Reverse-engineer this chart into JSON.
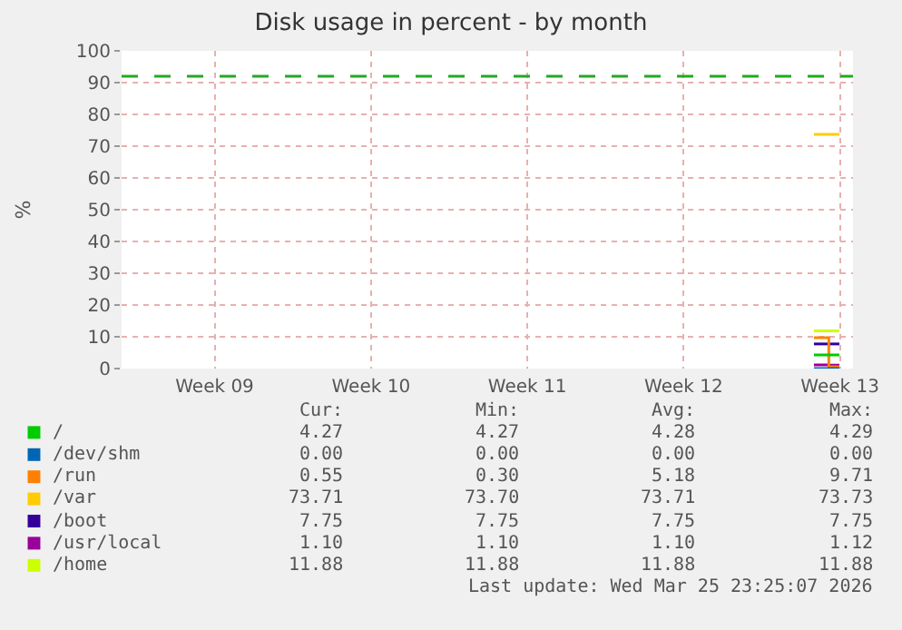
{
  "chart_data": {
    "type": "step",
    "title": "Disk usage in percent - by month",
    "ylabel": "%",
    "x": [
      "2026-03-24T20:00",
      "2026-03-25T12:00",
      "2026-03-25T23:25"
    ],
    "series": [
      {
        "name": "/",
        "color": "#00cc00",
        "values": [
          4.29,
          4.27,
          4.27
        ]
      },
      {
        "name": "/dev/shm",
        "color": "#0066b3",
        "values": [
          0.0,
          0.0,
          0.0
        ]
      },
      {
        "name": "/run",
        "color": "#ff8000",
        "values": [
          9.71,
          0.55,
          0.55
        ]
      },
      {
        "name": "/var",
        "color": "#ffcc00",
        "values": [
          73.73,
          73.71,
          73.71
        ]
      },
      {
        "name": "/boot",
        "color": "#330099",
        "values": [
          7.75,
          7.75,
          7.75
        ]
      },
      {
        "name": "/usr/local",
        "color": "#990099",
        "values": [
          1.12,
          1.1,
          1.1
        ]
      },
      {
        "name": "/home",
        "color": "#ccff00",
        "values": [
          11.88,
          11.88,
          11.88
        ]
      }
    ],
    "xlim": [
      "2026-02-21T20:00",
      "2026-03-26T14:00"
    ],
    "xticks": [
      {
        "value": "2026-02-26",
        "label": "Week 09"
      },
      {
        "value": "2026-03-05",
        "label": "Week 10"
      },
      {
        "value": "2026-03-12",
        "label": "Week 11"
      },
      {
        "value": "2026-03-19",
        "label": "Week 12"
      },
      {
        "value": "2026-03-26",
        "label": "Week 13"
      }
    ],
    "ylim": [
      0,
      100
    ],
    "yticks": [
      0,
      10,
      20,
      30,
      40,
      50,
      60,
      70,
      80,
      90,
      100
    ],
    "ref_lines": [
      {
        "axis": "y",
        "value": 92,
        "label": null,
        "color": "#22aa22",
        "line_style": "dashed"
      }
    ],
    "grid": true,
    "legend": "bottom",
    "annotations": [
      "Cur:",
      "Min:",
      "Avg:",
      "Max:",
      "4.27",
      "4.27",
      "4.28",
      "4.29",
      "0.00",
      "0.00",
      "0.00",
      "0.00",
      "0.55",
      "0.30",
      "5.18",
      "9.71",
      "73.71",
      "73.70",
      "73.71",
      "73.73",
      "7.75",
      "7.75",
      "7.75",
      "7.75",
      "1.10",
      "1.10",
      "1.10",
      "1.12",
      "11.88",
      "11.88",
      "11.88",
      "11.88",
      "Last update: Wed Mar 25 23:25:07 2026"
    ]
  }
}
